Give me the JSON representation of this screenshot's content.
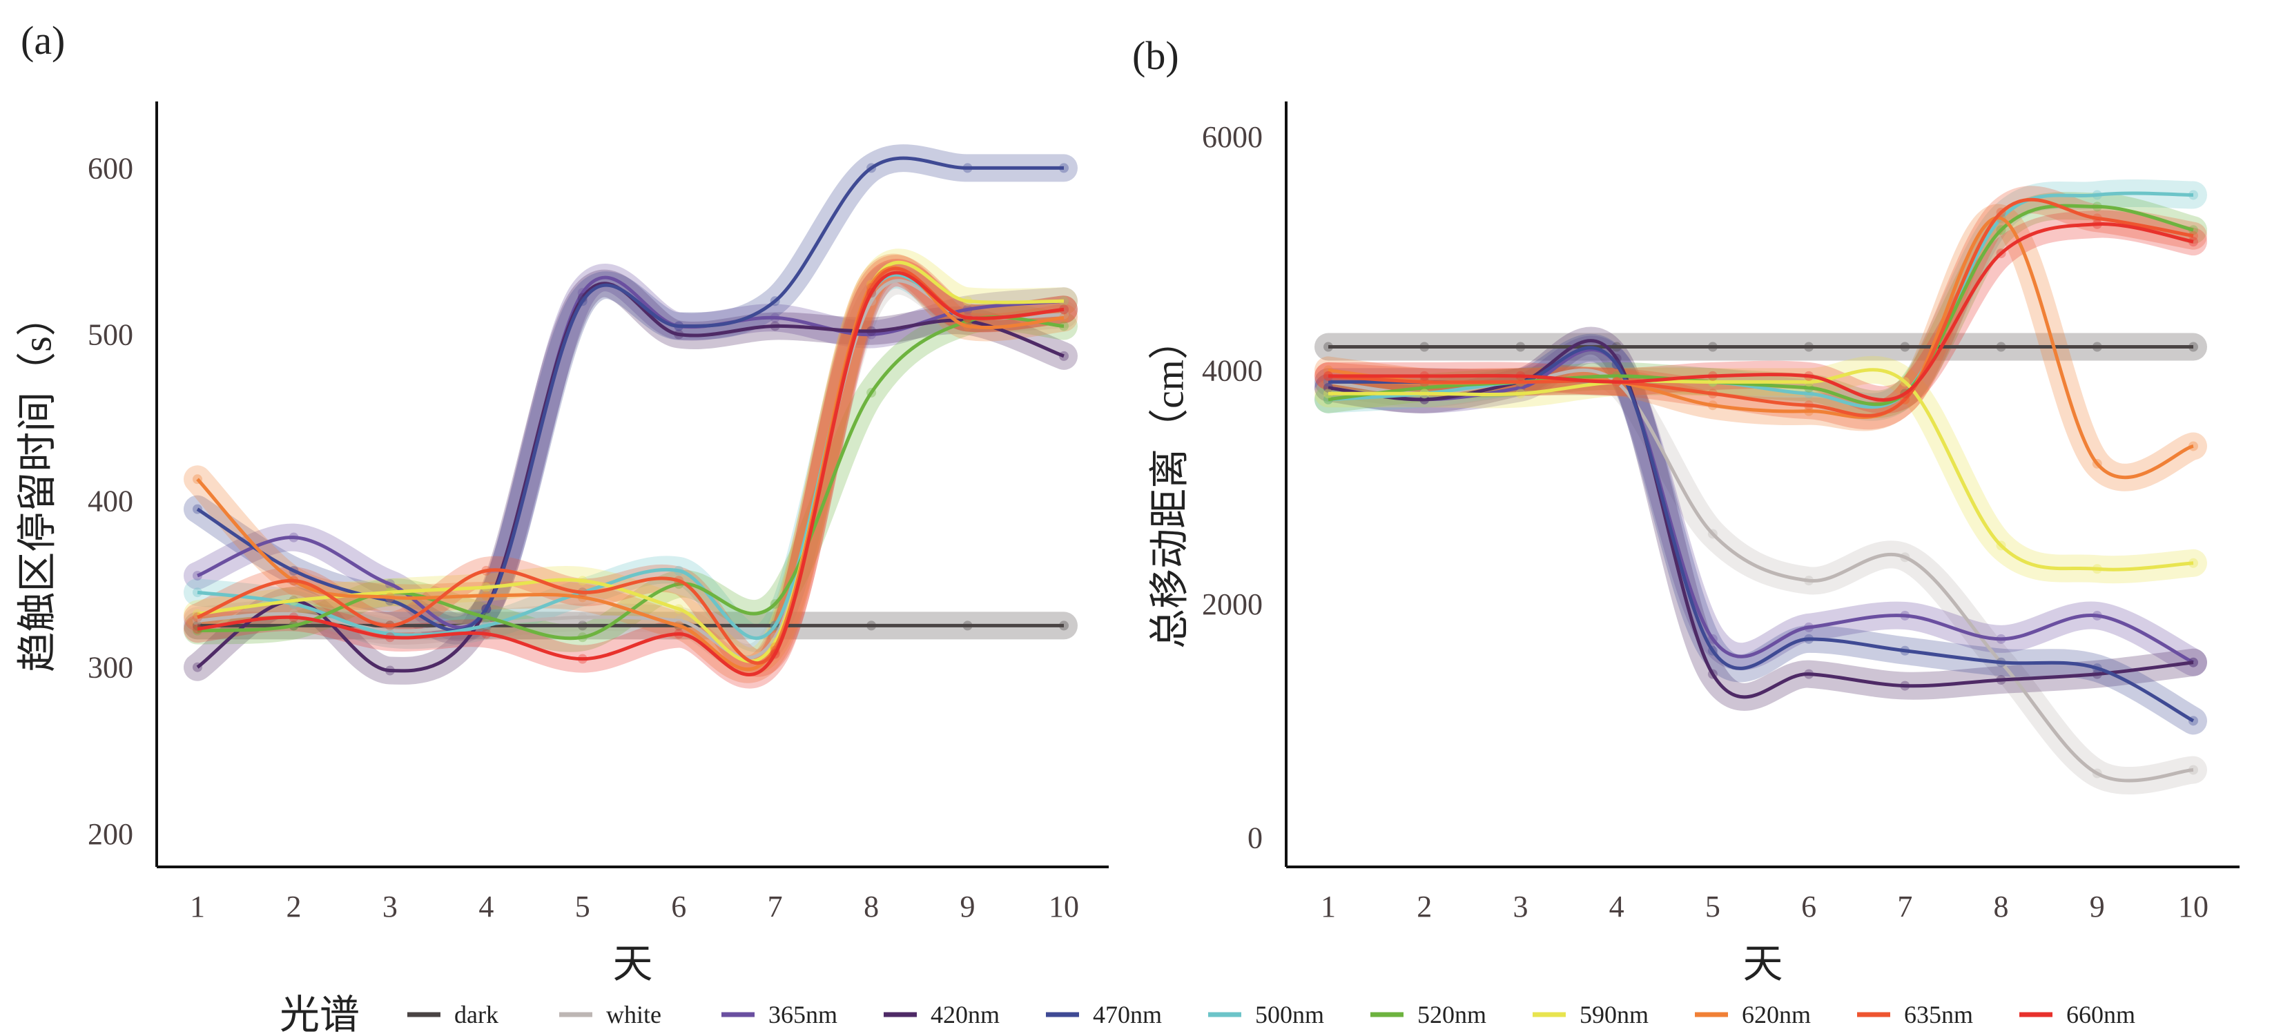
{
  "legend": {
    "title": "光谱",
    "position": "bottom"
  },
  "colors": {
    "dark": "#4a4444",
    "white": "#bdb6b4",
    "365nm": "#6a4fa0",
    "420nm": "#4e2a66",
    "470nm": "#3f4a94",
    "500nm": "#6cc4c8",
    "520nm": "#6db33f",
    "590nm": "#e8e44f",
    "620nm": "#f08036",
    "635nm": "#ee5530",
    "660nm": "#e8312c"
  },
  "chart_data": [
    {
      "type": "line",
      "panel_label": "(a)",
      "xlabel": "天",
      "ylabel": "趋触区停留时间（s）",
      "x": [
        1,
        2,
        3,
        4,
        5,
        6,
        7,
        8,
        9,
        10
      ],
      "xticks": [
        "1",
        "2",
        "3",
        "4",
        "5",
        "6",
        "7",
        "8",
        "9",
        "10"
      ],
      "yticks": [
        200,
        300,
        400,
        500,
        600
      ],
      "ylim": [
        180,
        640
      ],
      "grid": false,
      "smooth_with_ribbon": true,
      "series": [
        {
          "name": "dark",
          "values": [
            325,
            325,
            325,
            325,
            325,
            325,
            325,
            325,
            325,
            325
          ]
        },
        {
          "name": "white",
          "values": [
            328,
            332,
            322,
            326,
            330,
            328,
            318,
            520,
            510,
            512
          ]
        },
        {
          "name": "365nm",
          "values": [
            355,
            378,
            350,
            335,
            525,
            505,
            510,
            500,
            515,
            520
          ]
        },
        {
          "name": "420nm",
          "values": [
            300,
            340,
            298,
            335,
            522,
            500,
            505,
            502,
            508,
            487
          ]
        },
        {
          "name": "470nm",
          "values": [
            395,
            358,
            340,
            335,
            520,
            505,
            520,
            600,
            600,
            600
          ]
        },
        {
          "name": "500nm",
          "values": [
            345,
            338,
            320,
            325,
            345,
            358,
            325,
            525,
            510,
            515
          ]
        },
        {
          "name": "520nm",
          "values": [
            322,
            325,
            345,
            330,
            318,
            350,
            338,
            465,
            508,
            505
          ]
        },
        {
          "name": "590nm",
          "values": [
            332,
            340,
            345,
            348,
            352,
            335,
            315,
            530,
            520,
            520
          ]
        },
        {
          "name": "620nm",
          "values": [
            413,
            352,
            342,
            343,
            342,
            325,
            312,
            530,
            505,
            510
          ]
        },
        {
          "name": "635nm",
          "values": [
            330,
            352,
            325,
            358,
            345,
            352,
            310,
            528,
            510,
            515
          ]
        },
        {
          "name": "660nm",
          "values": [
            323,
            330,
            318,
            320,
            305,
            320,
            308,
            525,
            510,
            515
          ]
        }
      ]
    },
    {
      "type": "line",
      "panel_label": "(b)",
      "xlabel": "天",
      "ylabel": "总移动距离（cm）",
      "x": [
        1,
        2,
        3,
        4,
        5,
        6,
        7,
        8,
        9,
        10
      ],
      "xticks": [
        "1",
        "2",
        "3",
        "4",
        "5",
        "6",
        "7",
        "8",
        "9",
        "10"
      ],
      "yticks": [
        0,
        2000,
        4000,
        6000
      ],
      "ylim": [
        -250,
        6300
      ],
      "grid": false,
      "smooth_with_ribbon": true,
      "series": [
        {
          "name": "dark",
          "values": [
            4200,
            4200,
            4200,
            4200,
            4200,
            4200,
            4200,
            4200,
            4200,
            4200
          ]
        },
        {
          "name": "white",
          "values": [
            3900,
            3800,
            3900,
            3900,
            2600,
            2200,
            2400,
            1500,
            550,
            580
          ]
        },
        {
          "name": "365nm",
          "values": [
            3850,
            3750,
            3850,
            4050,
            1700,
            1800,
            1900,
            1700,
            1900,
            1500
          ]
        },
        {
          "name": "420nm",
          "values": [
            3850,
            3750,
            3900,
            4100,
            1400,
            1400,
            1300,
            1350,
            1400,
            1500
          ]
        },
        {
          "name": "470nm",
          "values": [
            3900,
            3900,
            3900,
            4050,
            1600,
            1700,
            1600,
            1500,
            1450,
            1000
          ]
        },
        {
          "name": "500nm",
          "values": [
            3750,
            3800,
            3900,
            3900,
            3900,
            3800,
            3800,
            5300,
            5500,
            5500
          ]
        },
        {
          "name": "520nm",
          "values": [
            3750,
            3850,
            3900,
            3950,
            3900,
            3850,
            3800,
            5200,
            5400,
            5200
          ]
        },
        {
          "name": "590nm",
          "values": [
            3800,
            3800,
            3800,
            3900,
            3900,
            3900,
            3900,
            2500,
            2300,
            2350
          ]
        },
        {
          "name": "620nm",
          "values": [
            4000,
            3900,
            3900,
            3900,
            3700,
            3650,
            3750,
            5300,
            3200,
            3350
          ]
        },
        {
          "name": "635nm",
          "values": [
            3950,
            3900,
            3900,
            3900,
            3800,
            3700,
            3750,
            5350,
            5300,
            5150
          ]
        },
        {
          "name": "660nm",
          "values": [
            3950,
            3950,
            3950,
            3900,
            3950,
            3950,
            3800,
            5000,
            5250,
            5100
          ]
        }
      ]
    }
  ]
}
